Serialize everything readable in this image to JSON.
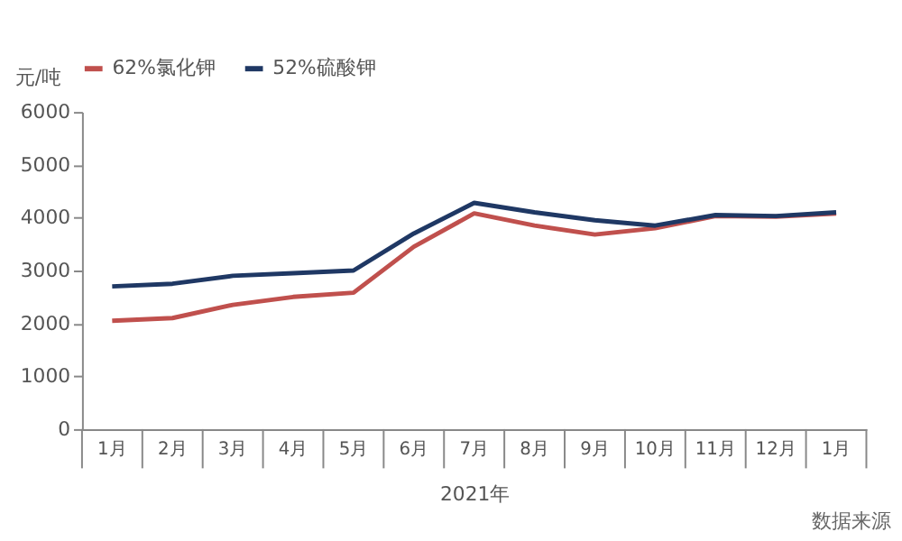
{
  "chart_data": {
    "type": "line",
    "ylabel": "元/吨",
    "xlabel": "2021年",
    "categories": [
      "1月",
      "2月",
      "3月",
      "4月",
      "5月",
      "6月",
      "7月",
      "8月",
      "9月",
      "10月",
      "11月",
      "12月",
      "1月"
    ],
    "series": [
      {
        "name": "62%氯化钾",
        "color": "#c0504d",
        "values": [
          2050,
          2100,
          2350,
          2500,
          2580,
          3450,
          4080,
          3850,
          3680,
          3800,
          4030,
          4020,
          4080
        ]
      },
      {
        "name": "52%硫酸钾",
        "color": "#1f3864",
        "values": [
          2700,
          2750,
          2900,
          2950,
          3000,
          3700,
          4280,
          4100,
          3950,
          3850,
          4050,
          4030,
          4100
        ]
      }
    ],
    "ylim": [
      0,
      6000
    ],
    "yticks": [
      0,
      1000,
      2000,
      3000,
      4000,
      5000,
      6000
    ],
    "grid": false,
    "legend": "top",
    "marker": "none",
    "line_style": "solid",
    "annotations": [
      "数据来源"
    ]
  }
}
